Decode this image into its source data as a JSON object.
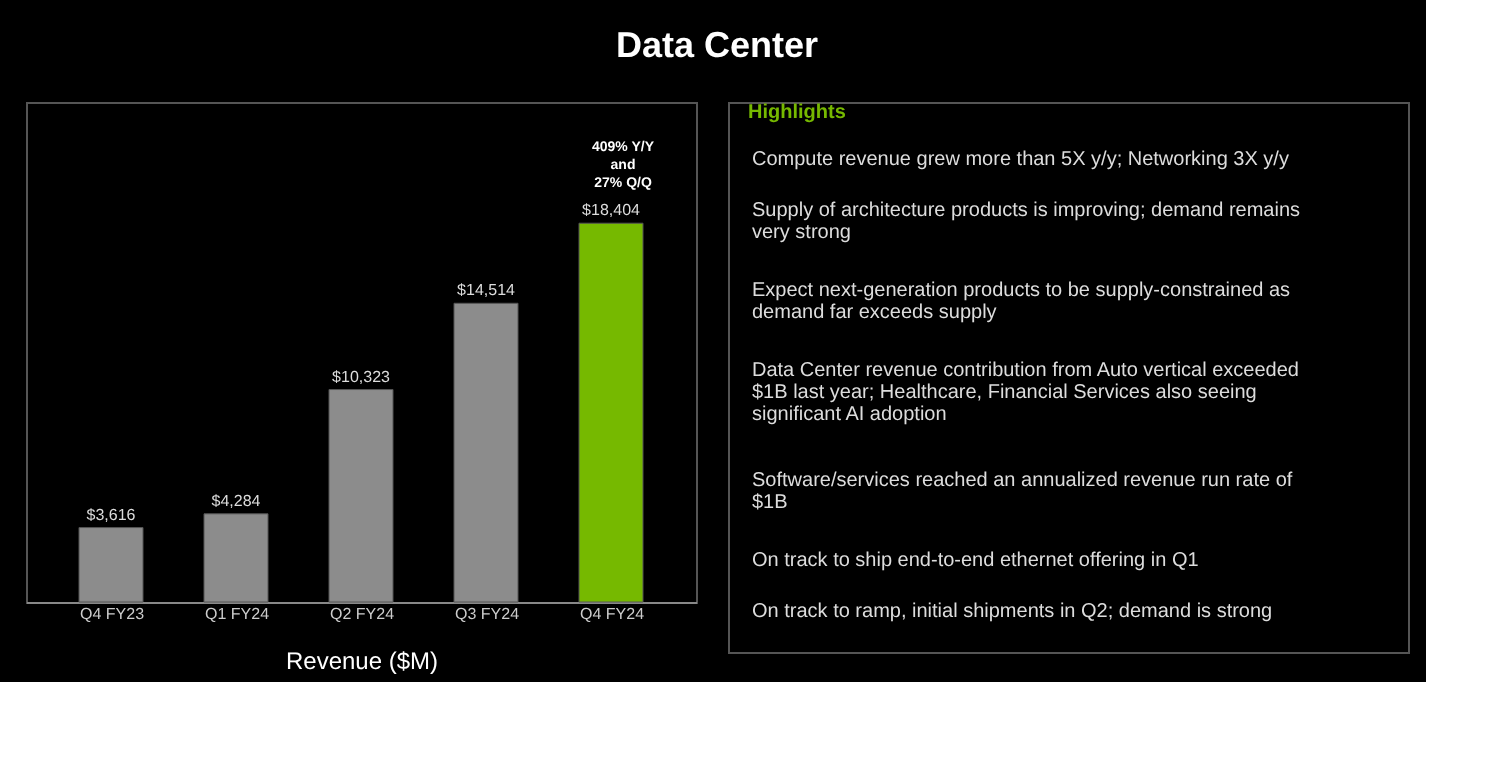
{
  "chart_data": [
    {
      "type": "bar",
      "title": "Data Center",
      "xlabel": "Revenue ($M)",
      "categories": [
        "Q4 FY23",
        "Q1 FY24",
        "Q2 FY24",
        "Q3 FY24",
        "Q4 FY24"
      ],
      "values": [
        3616,
        4284,
        10323,
        14514,
        18404
      ],
      "colors": [
        "#8c8c8c",
        "#8c8c8c",
        "#8c8c8c",
        "#8c8c8c",
        "#76b900"
      ],
      "value_labels": [
        "$3,616",
        "$4,284",
        "$10,323",
        "$14,514",
        "$18,404"
      ],
      "annotations": [
        "409% Y/Y\nand\n27% Q/Q"
      ],
      "grid": false
    },
    {
      "type": "other",
      "title": "Highlights",
      "annotations": [
        "Compute revenue grew more than 5X y/y; Networking 3X y/y",
        "Supply of architecture products is improving; demand remains very strong",
        "Expect next-generation products to be supply-constrained as demand far exceeds supply",
        "Data Center revenue contribution from Auto vertical exceeded $1B last year; Healthcare, Financial Services also seeing significant AI adoption",
        "Software/services reached an annualized revenue run rate of $1B",
        "On track to ship end-to-end ethernet offering in Q1",
        "On track to ramp, initial shipments in Q2; demand is strong"
      ]
    }
  ]
}
